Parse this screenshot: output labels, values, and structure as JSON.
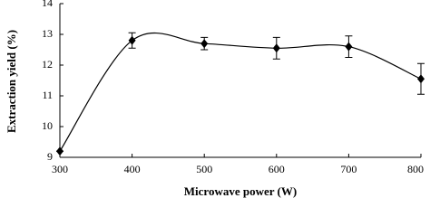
{
  "chart_data": {
    "type": "line",
    "x_label": "Microwave power (W)",
    "y_label": "Extraction yield (%)",
    "x": [
      300,
      400,
      500,
      600,
      700,
      800
    ],
    "series": [
      {
        "color": "#000000",
        "values": [
          9.2,
          12.8,
          12.7,
          12.55,
          12.6,
          11.55
        ],
        "errors": [
          0,
          0.25,
          0.2,
          0.35,
          0.35,
          0.5
        ]
      }
    ],
    "xlim": [
      300,
      800
    ],
    "ylim": [
      9,
      14
    ],
    "xticks": [
      300,
      400,
      500,
      600,
      700,
      800
    ],
    "yticks": [
      9,
      10,
      11,
      12,
      13,
      14
    ],
    "grid": false
  }
}
